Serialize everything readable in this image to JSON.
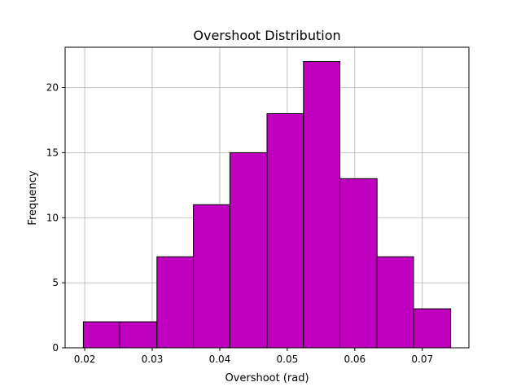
{
  "chart_data": {
    "type": "bar",
    "subtype": "histogram",
    "title": "Overshoot Distribution",
    "xlabel": "Overshoot (rad)",
    "ylabel": "Frequency",
    "bin_edges": [
      0.0198,
      0.0252,
      0.0307,
      0.0361,
      0.0415,
      0.047,
      0.0524,
      0.0578,
      0.0633,
      0.0687,
      0.0742
    ],
    "values": [
      2,
      2,
      7,
      11,
      15,
      18,
      22,
      13,
      7,
      3
    ],
    "xlim": [
      0.0171,
      0.0769
    ],
    "ylim": [
      0,
      23.1
    ],
    "x_ticks": [
      0.02,
      0.03,
      0.04,
      0.05,
      0.06,
      0.07
    ],
    "x_tick_labels": [
      "0.02",
      "0.03",
      "0.04",
      "0.05",
      "0.06",
      "0.07"
    ],
    "y_ticks": [
      0,
      5,
      10,
      15,
      20
    ],
    "y_tick_labels": [
      "0",
      "5",
      "10",
      "15",
      "20"
    ],
    "grid": true,
    "bar_color": "#bf00bf",
    "edge_color": "#000000"
  }
}
